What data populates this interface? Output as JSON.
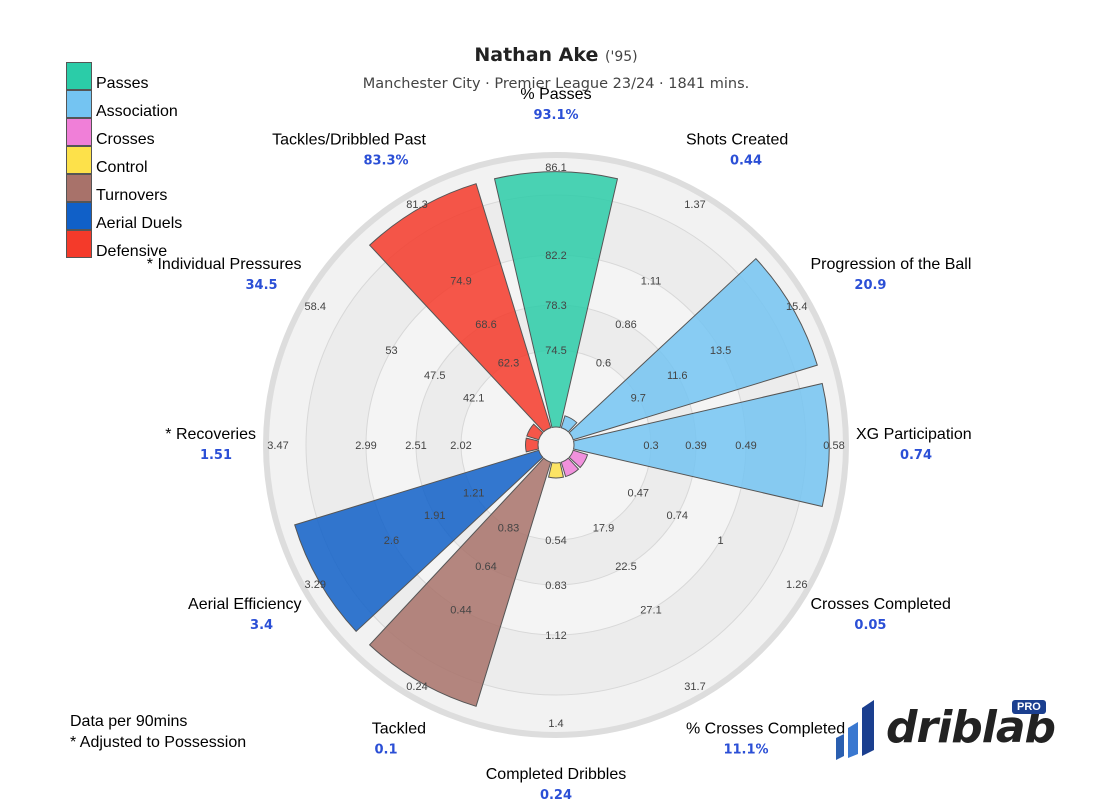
{
  "header": {
    "player_name": "Nathan Ake",
    "birth_year": "('95)",
    "subtitle": "Manchester City · Premier League 23/24 · 1841 mins."
  },
  "legend": [
    {
      "label": "Passes",
      "color": "#2bcca8"
    },
    {
      "label": "Association",
      "color": "#74c4f2"
    },
    {
      "label": "Crosses",
      "color": "#f07fd8"
    },
    {
      "label": "Control",
      "color": "#fde14a"
    },
    {
      "label": "Turnovers",
      "color": "#a8726a"
    },
    {
      "label": "Aerial Duels",
      "color": "#1060c8"
    },
    {
      "label": "Defensive",
      "color": "#f43a2a"
    }
  ],
  "footnote": {
    "line1": "Data per 90mins",
    "line2": "* Adjusted to Possession"
  },
  "logo": {
    "text": "driblab",
    "badge": "PRO"
  },
  "chart_data": {
    "type": "polar-bar",
    "title": "Nathan Ake ('95)",
    "subtitle": "Manchester City · Premier League 23/24 · 1841 mins.",
    "metrics": [
      {
        "name": "% Passes",
        "value": "93.1%",
        "group": "Passes",
        "percentile": 100,
        "ticks": [
          "74.5",
          "78.3",
          "82.2",
          "86.1"
        ]
      },
      {
        "name": "Shots Created",
        "value": "0.44",
        "group": "Association",
        "percentile": 5,
        "ticks": [
          "0.6",
          "0.86",
          "1.11",
          "1.37"
        ]
      },
      {
        "name": "Progression of the Ball",
        "value": "20.9",
        "group": "Association",
        "percentile": 100,
        "ticks": [
          "9.7",
          "11.6",
          "13.5",
          "15.4"
        ]
      },
      {
        "name": "XG Participation",
        "value": "0.74",
        "group": "Association",
        "percentile": 100,
        "ticks": [
          "0.3",
          "0.39",
          "0.49",
          "0.58"
        ]
      },
      {
        "name": "Crosses Completed",
        "value": "0.05",
        "group": "Crosses",
        "percentile": 6,
        "ticks": [
          "0.47",
          "0.74",
          "1",
          "1.26"
        ]
      },
      {
        "name": "% Crosses Completed",
        "value": "11.1%",
        "group": "Crosses",
        "percentile": 6,
        "ticks": [
          "17.9",
          "22.5",
          "27.1",
          "31.7"
        ]
      },
      {
        "name": "Completed Dribbles",
        "value": "0.24",
        "group": "Control",
        "percentile": 6,
        "ticks": [
          "0.54",
          "0.83",
          "1.12",
          "1.4"
        ]
      },
      {
        "name": "Tackled",
        "value": "0.1",
        "group": "Turnovers",
        "percentile": 100,
        "ticks": [
          "0.83",
          "0.64",
          "0.44",
          "0.24"
        ]
      },
      {
        "name": "Aerial Efficiency",
        "value": "3.4",
        "group": "Aerial Duels",
        "percentile": 100,
        "ticks": [
          "1.21",
          "1.91",
          "2.6",
          "3.29"
        ]
      },
      {
        "name": "* Recoveries",
        "value": "1.51",
        "group": "Defensive",
        "percentile": 3,
        "ticks": [
          "2.02",
          "2.51",
          "2.99",
          "3.47"
        ]
      },
      {
        "name": "* Individual Pressures",
        "value": "34.5",
        "group": "Defensive",
        "percentile": 3,
        "ticks": [
          "42.1",
          "47.5",
          "53",
          "58.4"
        ]
      },
      {
        "name": "Tackles/Dribbled Past",
        "value": "83.3%",
        "group": "Defensive",
        "percentile": 100,
        "ticks": [
          "62.3",
          "68.6",
          "74.9",
          "81.3"
        ]
      }
    ],
    "grid": true
  }
}
